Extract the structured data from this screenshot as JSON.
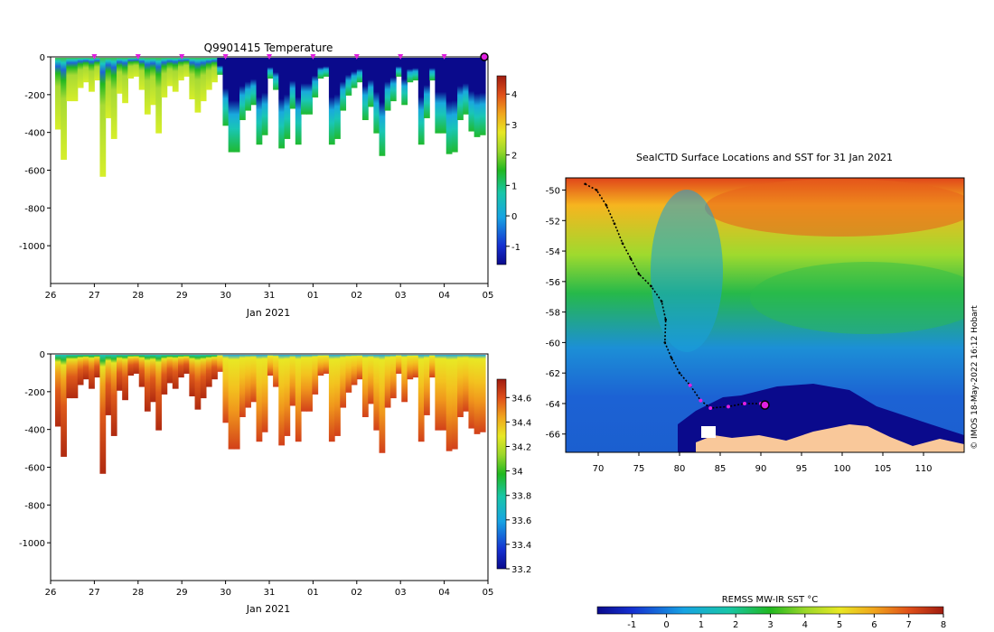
{
  "chart_data": [
    {
      "type": "heatmap",
      "title": "Q9901415  Temperature",
      "xlabel": "Jan 2021",
      "ylabel": "",
      "x_ticks": [
        "26",
        "27",
        "28",
        "29",
        "30",
        "31",
        "01",
        "02",
        "03",
        "04",
        "05"
      ],
      "y_ticks": [
        "0",
        "-200",
        "-400",
        "-600",
        "-800",
        "-1000"
      ],
      "ylim": [
        -1200,
        0
      ],
      "colorbar": {
        "ticks": [
          "4",
          "3",
          "2",
          "1",
          "0",
          "-1"
        ],
        "range": [
          -1.6,
          4.6
        ]
      },
      "profile_markers_label": "surface locations (magenta)",
      "profile_dates": [
        "27",
        "28",
        "29",
        "30",
        "31",
        "01",
        "02",
        "03",
        "04"
      ],
      "current_date": "05"
    },
    {
      "type": "heatmap",
      "title": "",
      "xlabel": "Jan 2021",
      "x_ticks": [
        "26",
        "27",
        "28",
        "29",
        "30",
        "31",
        "01",
        "02",
        "03",
        "04",
        "05"
      ],
      "y_ticks": [
        "0",
        "-200",
        "-400",
        "-600",
        "-800",
        "-1000"
      ],
      "ylim": [
        -1200,
        0
      ],
      "colorbar": {
        "ticks": [
          "34.6",
          "34.4",
          "34.2",
          "34",
          "33.8",
          "33.6",
          "33.4",
          "33.2"
        ],
        "range": [
          33.2,
          34.75
        ]
      }
    },
    {
      "type": "map",
      "title": "SealCTD Surface Locations and SST for 31 Jan 2021",
      "x_ticks": [
        "70",
        "75",
        "80",
        "85",
        "90",
        "95",
        "100",
        "105",
        "110"
      ],
      "y_ticks": [
        "-50",
        "-52",
        "-54",
        "-56",
        "-58",
        "-60",
        "-62",
        "-64",
        "-66"
      ],
      "xlim": [
        66,
        115
      ],
      "ylim": [
        -67.2,
        -49.2
      ],
      "track": [
        [
          68.4,
          -49.6
        ],
        [
          69.8,
          -50
        ],
        [
          71,
          -51
        ],
        [
          72,
          -52.2
        ],
        [
          73,
          -53.5
        ],
        [
          74,
          -54.5
        ],
        [
          75,
          -55.5
        ],
        [
          76.5,
          -56.3
        ],
        [
          77.8,
          -57.3
        ],
        [
          78.3,
          -58.5
        ],
        [
          78.2,
          -60
        ],
        [
          79,
          -61
        ],
        [
          80,
          -62
        ],
        [
          81.3,
          -62.8
        ],
        [
          82.6,
          -63.8
        ],
        [
          83.8,
          -64.3
        ],
        [
          86,
          -64.2
        ],
        [
          88,
          -64
        ],
        [
          90,
          -64
        ]
      ],
      "current_position": [
        90.5,
        -64.1
      ],
      "colorbar": {
        "label": "REMSS MW-IR SST °C",
        "ticks": [
          "-1",
          "0",
          "1",
          "2",
          "3",
          "4",
          "5",
          "6",
          "7",
          "8"
        ],
        "range": [
          -2,
          8
        ]
      },
      "credit": "© IMOS 18-May-2022 16:12 Hobart"
    }
  ]
}
